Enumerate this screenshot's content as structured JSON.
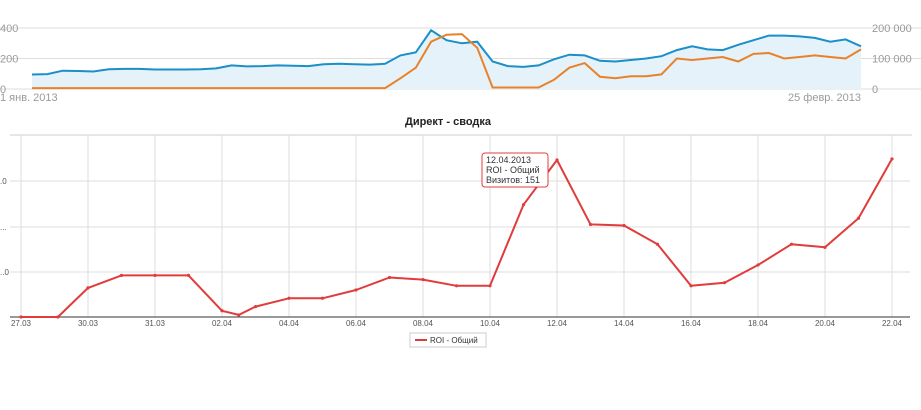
{
  "colors": {
    "blue": "#1a8fc8",
    "blue_fill": "#e6f2f9",
    "orange": "#e8822a",
    "red": "#e03c3c",
    "grid": "#dddddd"
  },
  "chart_data": [
    {
      "type": "area",
      "title": "",
      "x_start_label": "1 янв. 2013",
      "x_end_label": "25 февр. 2013",
      "left_axis_ticks": [
        0,
        200,
        400
      ],
      "right_axis_ticks": [
        "0",
        "100 000",
        "200 000"
      ],
      "left_ylim": [
        0,
        400
      ],
      "right_ylim": [
        0,
        200000
      ],
      "grid": true,
      "series": [
        {
          "axis": "left",
          "color": "#1a8fc8",
          "filled": true,
          "values": [
            95,
            98,
            120,
            118,
            115,
            130,
            132,
            132,
            128,
            128,
            128,
            130,
            135,
            155,
            148,
            150,
            155,
            152,
            150,
            162,
            165,
            162,
            160,
            165,
            220,
            240,
            385,
            320,
            300,
            310,
            180,
            150,
            145,
            155,
            195,
            225,
            220,
            185,
            180,
            190,
            200,
            215,
            255,
            280,
            260,
            255,
            290,
            320,
            350,
            350,
            345,
            335,
            310,
            325,
            280
          ]
        },
        {
          "axis": "right",
          "color": "#e8822a",
          "filled": false,
          "values": [
            3000,
            3000,
            3000,
            3000,
            3000,
            3000,
            3000,
            3000,
            3000,
            3000,
            3000,
            3000,
            3000,
            3000,
            3000,
            3000,
            3000,
            3000,
            3000,
            3000,
            3000,
            3000,
            3000,
            3000,
            35000,
            70000,
            155000,
            178000,
            180000,
            135000,
            5000,
            5000,
            5000,
            5000,
            30000,
            70000,
            85000,
            40000,
            35000,
            42000,
            42000,
            48000,
            100000,
            95000,
            100000,
            105000,
            90000,
            115000,
            118000,
            100000,
            105000,
            110000,
            105000,
            100000,
            130000
          ]
        }
      ]
    },
    {
      "type": "line",
      "title": "Директ - сводка",
      "categories": [
        "27.03",
        "30.03",
        "31.03",
        "02.04",
        "04.04",
        "06.04",
        "08.04",
        "10.04",
        "12.04",
        "14.04",
        "16.04",
        "18.04",
        "20.04",
        "22.04"
      ],
      "left_tick_labels": [
        "",
        ".0",
        "...",
        "..0"
      ],
      "tooltip": {
        "line1": "12.04.2013",
        "line2": "ROI - Общий",
        "line3": "Визитов: 151"
      },
      "legend": [
        {
          "name": "ROI - Общий",
          "color": "#e03c3c"
        }
      ],
      "ylim": [
        0,
        175
      ],
      "grid": true,
      "series": [
        {
          "name": "ROI - Общий",
          "color": "#e03c3c",
          "points": [
            [
              0,
              0
            ],
            [
              0.55,
              0
            ],
            [
              1,
              28
            ],
            [
              1.5,
              40
            ],
            [
              2,
              40
            ],
            [
              2.5,
              40
            ],
            [
              3,
              6
            ],
            [
              3.25,
              2
            ],
            [
              3.5,
              10
            ],
            [
              4,
              18
            ],
            [
              4.5,
              18
            ],
            [
              5,
              26
            ],
            [
              5.5,
              38
            ],
            [
              6,
              36
            ],
            [
              6.5,
              30
            ],
            [
              7,
              30
            ],
            [
              7.5,
              108
            ],
            [
              8,
              151
            ],
            [
              8.5,
              89
            ],
            [
              9,
              88
            ],
            [
              9.5,
              70
            ],
            [
              10,
              30
            ],
            [
              10.5,
              33
            ],
            [
              11,
              50
            ],
            [
              11.5,
              70
            ],
            [
              12,
              67
            ],
            [
              12.5,
              95
            ],
            [
              13,
              152
            ]
          ]
        }
      ]
    }
  ]
}
